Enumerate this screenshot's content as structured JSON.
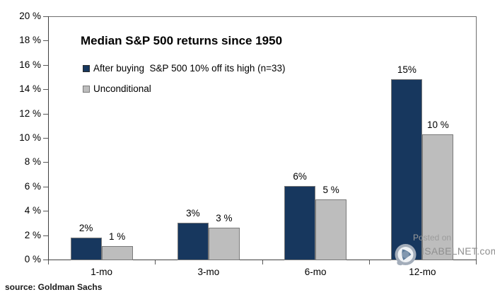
{
  "title": "Median S&P 500 returns since 1950",
  "source": "source: Goldman Sachs",
  "watermark": {
    "line1": "Posted on",
    "line2": "ISABELNET.com"
  },
  "legend": [
    {
      "label": "After buying  S&P 500 10% off its high (n=33)",
      "color": "#17375E",
      "border": "#2b2b2b"
    },
    {
      "label": "Unconditional",
      "color": "#BDBDBD",
      "border": "#7a7a7a"
    }
  ],
  "colors": {
    "series1": "#17375E",
    "series2": "#BDBDBD",
    "bar_border": "#7a7a7a",
    "axis": "#404040",
    "plot_border": "#6e6e6e",
    "watermark_text": "#8f8f8f"
  },
  "chart_data": {
    "type": "bar",
    "title": "Median S&P 500 returns since 1950",
    "categories": [
      "1-mo",
      "3-mo",
      "6-mo",
      "12-mo"
    ],
    "series": [
      {
        "name": "After buying  S&P 500 10% off its high (n=33)",
        "color": "#17375E",
        "values": [
          1.8,
          3.0,
          6.05,
          14.8
        ],
        "labels": [
          "2%",
          "3%",
          "6%",
          "15%"
        ]
      },
      {
        "name": "Unconditional",
        "color": "#BDBDBD",
        "values": [
          1.1,
          2.6,
          4.95,
          10.3
        ],
        "labels": [
          "1 %",
          "3 %",
          "5 %",
          "10 %"
        ]
      }
    ],
    "xlabel": "",
    "ylabel": "",
    "ylim": [
      0,
      20
    ],
    "ytick_step": 2,
    "ytick_format": "{v} %",
    "grid": false,
    "legend_position": "top-left-inside"
  }
}
